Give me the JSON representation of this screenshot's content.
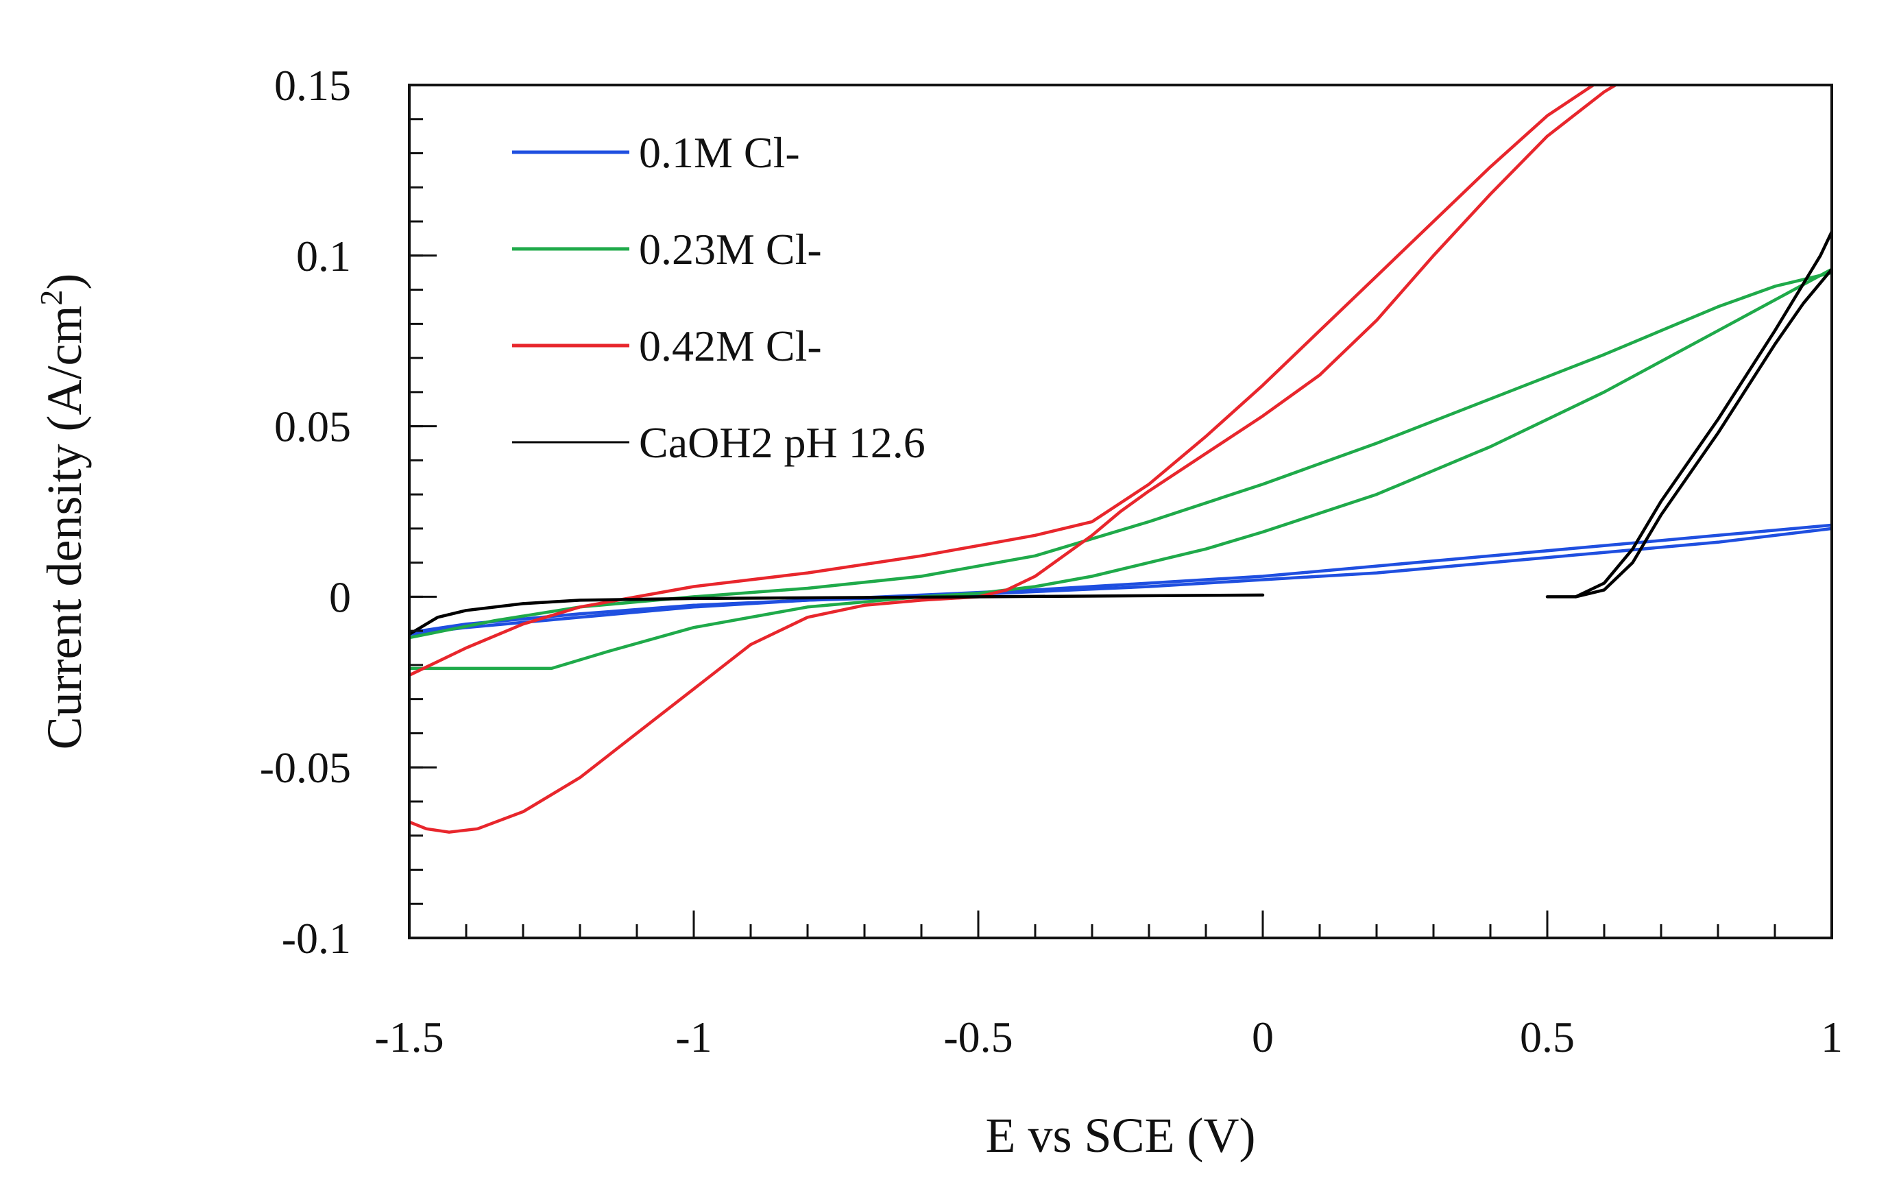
{
  "chart_data": {
    "type": "line",
    "title": "",
    "xlabel": "E vs SCE (V)",
    "ylabel": "Current density (A/cm",
    "ylabel_sup": "2",
    "ylabel_end": ")",
    "xlim": [
      -1.5,
      1
    ],
    "ylim": [
      -0.1,
      0.15
    ],
    "x_ticks": [
      {
        "value": -1.5,
        "label": "-1.5"
      },
      {
        "value": -1,
        "label": "-1"
      },
      {
        "value": -0.5,
        "label": "-0.5"
      },
      {
        "value": 0,
        "label": "0"
      },
      {
        "value": 0.5,
        "label": "0.5"
      },
      {
        "value": 1,
        "label": "1"
      }
    ],
    "y_ticks": [
      {
        "value": -0.1,
        "label": "-0.1"
      },
      {
        "value": -0.05,
        "label": "-0.05"
      },
      {
        "value": 0,
        "label": "0"
      },
      {
        "value": 0.05,
        "label": "0.05"
      },
      {
        "value": 0.1,
        "label": "0.1"
      },
      {
        "value": 0.15,
        "label": "0.15"
      }
    ],
    "x_minor_step": 0.1,
    "y_minor_step": 0.01,
    "grid": false,
    "legend_position": "top-left",
    "series": [
      {
        "name": "0.1M Cl-",
        "color": "#1f4fe0",
        "segments": [
          [
            [
              -1.5,
              -0.011
            ],
            [
              -1.4,
              -0.009
            ],
            [
              -1.2,
              -0.006
            ],
            [
              -1.0,
              -0.003
            ],
            [
              -0.8,
              -0.001
            ],
            [
              -0.6,
              0.0005
            ],
            [
              -0.4,
              0.002
            ],
            [
              -0.2,
              0.004
            ],
            [
              0,
              0.006
            ],
            [
              0.2,
              0.009
            ],
            [
              0.4,
              0.012
            ],
            [
              0.6,
              0.015
            ],
            [
              0.8,
              0.018
            ],
            [
              1.0,
              0.021
            ]
          ],
          [
            [
              1.0,
              0.02
            ],
            [
              0.8,
              0.016
            ],
            [
              0.6,
              0.013
            ],
            [
              0.4,
              0.01
            ],
            [
              0.2,
              0.007
            ],
            [
              0,
              0.005
            ],
            [
              -0.2,
              0.003
            ],
            [
              -0.4,
              0.0015
            ],
            [
              -0.6,
              0.0
            ],
            [
              -0.8,
              -0.001
            ],
            [
              -1.0,
              -0.0025
            ],
            [
              -1.2,
              -0.005
            ],
            [
              -1.4,
              -0.008
            ],
            [
              -1.5,
              -0.0105
            ]
          ]
        ]
      },
      {
        "name": "0.23M Cl-",
        "color": "#1faa4a",
        "segments": [
          [
            [
              -1.5,
              -0.021
            ],
            [
              -1.25,
              -0.021
            ],
            [
              -1.15,
              -0.016
            ],
            [
              -1.0,
              -0.009
            ],
            [
              -0.8,
              -0.003
            ],
            [
              -0.6,
              0.0
            ],
            [
              -0.5,
              0.001
            ],
            [
              -0.4,
              0.003
            ],
            [
              -0.3,
              0.006
            ],
            [
              -0.2,
              0.01
            ],
            [
              -0.1,
              0.014
            ],
            [
              0,
              0.019
            ],
            [
              0.2,
              0.03
            ],
            [
              0.4,
              0.044
            ],
            [
              0.6,
              0.06
            ],
            [
              0.8,
              0.078
            ],
            [
              0.9,
              0.087
            ],
            [
              1.0,
              0.096
            ]
          ],
          [
            [
              1.0,
              0.095
            ],
            [
              0.9,
              0.091
            ],
            [
              0.8,
              0.085
            ],
            [
              0.6,
              0.071
            ],
            [
              0.4,
              0.058
            ],
            [
              0.2,
              0.045
            ],
            [
              0,
              0.033
            ],
            [
              -0.2,
              0.022
            ],
            [
              -0.4,
              0.012
            ],
            [
              -0.6,
              0.006
            ],
            [
              -0.8,
              0.0025
            ],
            [
              -1.0,
              0.0
            ],
            [
              -1.2,
              -0.003
            ],
            [
              -1.35,
              -0.007
            ],
            [
              -1.5,
              -0.012
            ]
          ]
        ]
      },
      {
        "name": "0.42M Cl-",
        "color": "#e8262c",
        "segments": [
          [
            [
              -1.5,
              -0.066
            ],
            [
              -1.47,
              -0.068
            ],
            [
              -1.43,
              -0.069
            ],
            [
              -1.38,
              -0.068
            ],
            [
              -1.3,
              -0.063
            ],
            [
              -1.2,
              -0.053
            ],
            [
              -1.1,
              -0.04
            ],
            [
              -1.0,
              -0.027
            ],
            [
              -0.9,
              -0.014
            ],
            [
              -0.8,
              -0.006
            ],
            [
              -0.7,
              -0.0025
            ],
            [
              -0.6,
              -0.001
            ],
            [
              -0.5,
              0.0
            ],
            [
              -0.45,
              0.002
            ],
            [
              -0.4,
              0.006
            ],
            [
              -0.35,
              0.012
            ],
            [
              -0.3,
              0.018
            ],
            [
              -0.25,
              0.025
            ],
            [
              -0.2,
              0.031
            ],
            [
              -0.1,
              0.042
            ],
            [
              0,
              0.053
            ],
            [
              0.1,
              0.065
            ],
            [
              0.2,
              0.081
            ],
            [
              0.3,
              0.1
            ],
            [
              0.4,
              0.118
            ],
            [
              0.5,
              0.135
            ],
            [
              0.6,
              0.148
            ],
            [
              0.63,
              0.151
            ]
          ],
          [
            [
              0.59,
              0.151
            ],
            [
              0.5,
              0.141
            ],
            [
              0.4,
              0.126
            ],
            [
              0.3,
              0.11
            ],
            [
              0.2,
              0.094
            ],
            [
              0.1,
              0.078
            ],
            [
              0,
              0.062
            ],
            [
              -0.1,
              0.047
            ],
            [
              -0.2,
              0.033
            ],
            [
              -0.3,
              0.022
            ],
            [
              -0.4,
              0.018
            ],
            [
              -0.5,
              0.015
            ],
            [
              -0.6,
              0.012
            ],
            [
              -0.8,
              0.007
            ],
            [
              -1.0,
              0.003
            ],
            [
              -1.1,
              0.0
            ],
            [
              -1.2,
              -0.003
            ],
            [
              -1.3,
              -0.008
            ],
            [
              -1.4,
              -0.015
            ],
            [
              -1.5,
              -0.023
            ]
          ]
        ]
      },
      {
        "name": "CaOH2 pH 12.6",
        "color": "#000000",
        "segments": [
          [
            [
              -1.5,
              -0.011
            ],
            [
              -1.45,
              -0.006
            ],
            [
              -1.4,
              -0.004
            ],
            [
              -1.3,
              -0.002
            ],
            [
              -1.2,
              -0.001
            ],
            [
              -1.0,
              -0.0005
            ],
            [
              0,
              0.0005
            ]
          ],
          [
            [
              0.5,
              0.0
            ],
            [
              0.55,
              0.0
            ],
            [
              0.6,
              0.002
            ],
            [
              0.65,
              0.01
            ],
            [
              0.7,
              0.024
            ],
            [
              0.8,
              0.048
            ],
            [
              0.9,
              0.074
            ],
            [
              0.95,
              0.086
            ],
            [
              1.0,
              0.096
            ]
          ],
          [
            [
              1.0,
              0.107
            ],
            [
              0.98,
              0.1
            ],
            [
              0.9,
              0.078
            ],
            [
              0.8,
              0.052
            ],
            [
              0.7,
              0.028
            ],
            [
              0.65,
              0.014
            ],
            [
              0.6,
              0.004
            ],
            [
              0.55,
              0.0
            ]
          ]
        ]
      }
    ]
  }
}
